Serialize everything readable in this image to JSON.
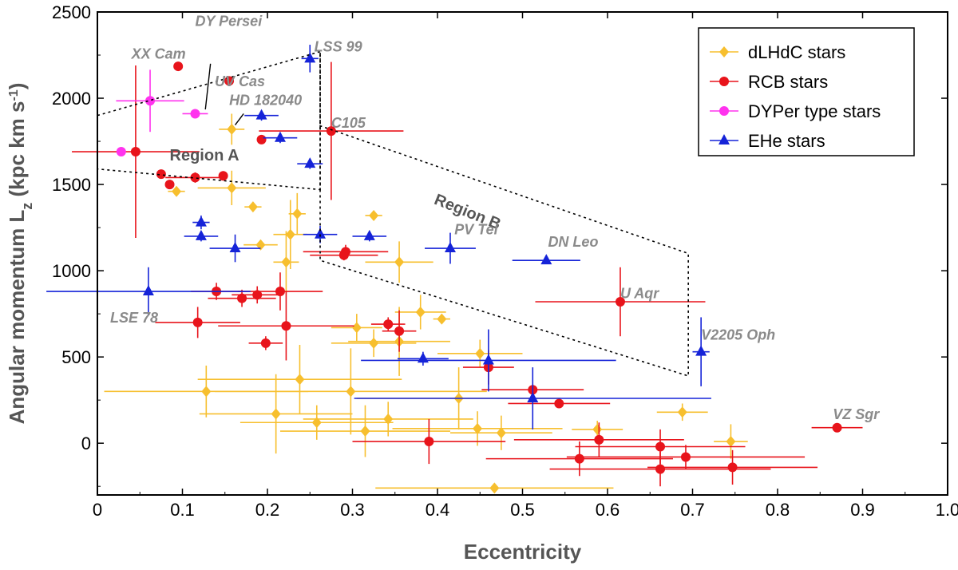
{
  "chart_data": {
    "type": "scatter",
    "xlabel": "Eccentricity",
    "ylabel": "Angular momentum L",
    "ylabel_sub": "z",
    "ylabel_units": "  (kpc  km s",
    "ylabel_sup": "-1",
    "ylabel_close": ")",
    "xlim": [
      0,
      1.0
    ],
    "ylim": [
      -300,
      2500
    ],
    "xticks": [
      0,
      0.1,
      0.2,
      0.3,
      0.4,
      0.5,
      0.6,
      0.7,
      0.8,
      0.9,
      1.0
    ],
    "xtick_labels": [
      "0",
      "0.1",
      "0.2",
      "0.3",
      "0.4",
      "0.5",
      "0.6",
      "0.7",
      "0.8",
      "0.9",
      "1.0"
    ],
    "yticks": [
      0,
      500,
      1000,
      1500,
      2000,
      2500
    ],
    "ytick_labels": [
      "0",
      "500",
      "1000",
      "1500",
      "2000",
      "2500"
    ],
    "legend_position": "top-right",
    "series": [
      {
        "name": "dLHdC stars",
        "color": "#f7bf2e",
        "marker": "diamond",
        "points": [
          [
            0.093,
            1460,
            0.01,
            20
          ],
          [
            0.158,
            1820,
            0.015,
            90
          ],
          [
            0.158,
            1480,
            0.04,
            100
          ],
          [
            0.183,
            1370,
            0.01,
            20
          ],
          [
            0.192,
            1150,
            0.02,
            20
          ],
          [
            0.222,
            1050,
            0.015,
            180
          ],
          [
            0.227,
            1210,
            0.02,
            200
          ],
          [
            0.235,
            1330,
            0.01,
            120
          ],
          [
            0.325,
            1320,
            0.01,
            20
          ],
          [
            0.355,
            1050,
            0.04,
            120
          ],
          [
            0.38,
            760,
            0.03,
            100
          ],
          [
            0.405,
            720,
            0.01,
            20
          ],
          [
            0.305,
            670,
            0.03,
            80
          ],
          [
            0.325,
            580,
            0.05,
            80
          ],
          [
            0.355,
            590,
            0.06,
            200
          ],
          [
            0.45,
            520,
            0.05,
            80
          ],
          [
            0.128,
            300,
            0.12,
            150
          ],
          [
            0.238,
            370,
            0.12,
            200
          ],
          [
            0.21,
            170,
            0.09,
            230
          ],
          [
            0.258,
            120,
            0.09,
            100
          ],
          [
            0.298,
            300,
            0.16,
            250
          ],
          [
            0.315,
            70,
            0.1,
            150
          ],
          [
            0.342,
            140,
            0.1,
            100
          ],
          [
            0.425,
            260,
            0.12,
            180
          ],
          [
            0.447,
            85,
            0.1,
            100
          ],
          [
            0.475,
            60,
            0.06,
            100
          ],
          [
            0.588,
            80,
            0.03,
            50
          ],
          [
            0.688,
            180,
            0.03,
            50
          ],
          [
            0.745,
            10,
            0.02,
            100
          ],
          [
            0.467,
            -260,
            0.14,
            20
          ]
        ]
      },
      {
        "name": "RCB stars",
        "color": "#e8141b",
        "marker": "circle",
        "points": [
          [
            0.095,
            2185,
            0.005,
            20
          ],
          [
            0.155,
            2100,
            0.005,
            20
          ],
          [
            0.193,
            1760,
            0.005,
            20
          ],
          [
            0.275,
            1810,
            0.085,
            400
          ],
          [
            0.045,
            1690,
            0.075,
            500
          ],
          [
            0.075,
            1560,
            0.005,
            20
          ],
          [
            0.085,
            1500,
            0.005,
            20
          ],
          [
            0.115,
            1540,
            0.035,
            30
          ],
          [
            0.148,
            1550,
            0.005,
            20
          ],
          [
            0.292,
            1110,
            0.05,
            40
          ],
          [
            0.29,
            1090,
            0.04,
            30
          ],
          [
            0.14,
            880,
            0.03,
            50
          ],
          [
            0.17,
            840,
            0.04,
            50
          ],
          [
            0.188,
            860,
            0.03,
            50
          ],
          [
            0.215,
            880,
            0.05,
            110
          ],
          [
            0.118,
            700,
            0.05,
            90
          ],
          [
            0.222,
            680,
            0.08,
            200
          ],
          [
            0.198,
            580,
            0.02,
            40
          ],
          [
            0.342,
            690,
            0.02,
            40
          ],
          [
            0.355,
            650,
            0.02,
            120
          ],
          [
            0.615,
            820,
            0.1,
            200
          ],
          [
            0.46,
            440,
            0.03,
            100
          ],
          [
            0.512,
            310,
            0.06,
            30
          ],
          [
            0.543,
            230,
            0.06,
            20
          ],
          [
            0.39,
            10,
            0.09,
            130
          ],
          [
            0.59,
            20,
            0.1,
            100
          ],
          [
            0.567,
            -90,
            0.11,
            100
          ],
          [
            0.662,
            -20,
            0.1,
            100
          ],
          [
            0.692,
            -80,
            0.14,
            70
          ],
          [
            0.662,
            -150,
            0.13,
            100
          ],
          [
            0.747,
            -140,
            0.1,
            100
          ],
          [
            0.87,
            90,
            0.03,
            20
          ]
        ]
      },
      {
        "name": "DYPer type stars",
        "color": "#ff33ee",
        "marker": "circle",
        "points": [
          [
            0.028,
            1690,
            0.005,
            20
          ],
          [
            0.062,
            1985,
            0.04,
            180
          ],
          [
            0.115,
            1910,
            0.015,
            20
          ]
        ]
      },
      {
        "name": "EHe stars",
        "color": "#1523d8",
        "marker": "triangle",
        "points": [
          [
            0.25,
            2230,
            0.01,
            80
          ],
          [
            0.193,
            1900,
            0.02,
            30
          ],
          [
            0.215,
            1770,
            0.02,
            30
          ],
          [
            0.25,
            1620,
            0.015,
            30
          ],
          [
            0.122,
            1280,
            0.01,
            40
          ],
          [
            0.122,
            1200,
            0.02,
            30
          ],
          [
            0.162,
            1130,
            0.03,
            80
          ],
          [
            0.262,
            1210,
            0.02,
            50
          ],
          [
            0.32,
            1200,
            0.02,
            30
          ],
          [
            0.415,
            1130,
            0.03,
            90
          ],
          [
            0.528,
            1060,
            0.04,
            20
          ],
          [
            0.06,
            880,
            0.12,
            140
          ],
          [
            0.383,
            490,
            0.03,
            40
          ],
          [
            0.46,
            480,
            0.15,
            180
          ],
          [
            0.512,
            260,
            0.21,
            180
          ],
          [
            0.71,
            530,
            0.01,
            200
          ]
        ]
      }
    ],
    "annotations": [
      {
        "text": "XX Cam",
        "x": 0.04,
        "y": 2230
      },
      {
        "text": "DY Persei",
        "x": 0.115,
        "y": 2420
      },
      {
        "text": "UV Cas",
        "x": 0.138,
        "y": 2070
      },
      {
        "text": "LSS 99",
        "x": 0.255,
        "y": 2270
      },
      {
        "text": "HD 182040",
        "x": 0.155,
        "y": 1960
      },
      {
        "text": "C105",
        "x": 0.275,
        "y": 1830
      },
      {
        "text": "PV Tel",
        "x": 0.42,
        "y": 1210
      },
      {
        "text": "DN Leo",
        "x": 0.53,
        "y": 1140
      },
      {
        "text": "U Aqr",
        "x": 0.615,
        "y": 840
      },
      {
        "text": "V2205 Oph",
        "x": 0.71,
        "y": 600
      },
      {
        "text": "VZ Sgr",
        "x": 0.865,
        "y": 140
      },
      {
        "text": "LSE 78",
        "x": 0.015,
        "y": 700
      }
    ],
    "regions": [
      {
        "name": "Region A",
        "label_x": 0.085,
        "label_y": 1640,
        "polygon": [
          [
            0,
            1900
          ],
          [
            0.262,
            2270
          ],
          [
            0.262,
            1470
          ],
          [
            0,
            1590
          ]
        ]
      },
      {
        "name": "Region B",
        "label_x": 0.395,
        "label_y": 1390,
        "polygon": [
          [
            0.262,
            1470
          ],
          [
            0.262,
            1060
          ],
          [
            0.695,
            390
          ],
          [
            0.695,
            1100
          ],
          [
            0.262,
            1840
          ],
          [
            0.262,
            2270
          ]
        ]
      }
    ],
    "leader_lines": [
      {
        "from": [
          0.127,
          1935
        ],
        "to": [
          0.133,
          2200
        ]
      },
      {
        "from": [
          0.162,
          1845
        ],
        "to": [
          0.172,
          1910
        ]
      }
    ]
  }
}
